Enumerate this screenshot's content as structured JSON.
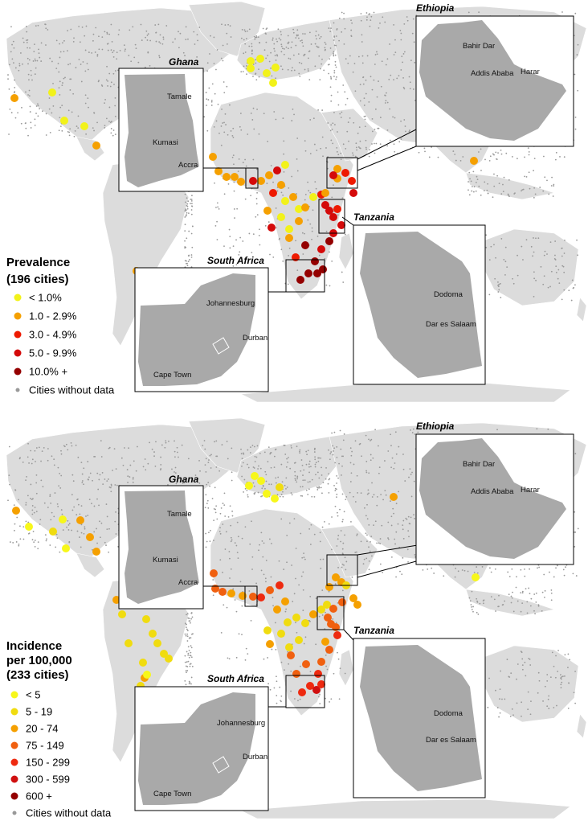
{
  "colors": {
    "land": "#dcdcdc",
    "ocean": "#ffffff",
    "inset_country": "#a9a9a9",
    "no_data_dot": "#999999",
    "inset_border": "#000000"
  },
  "panels": [
    {
      "id": "prevalence",
      "legend": {
        "title_lines": [
          "Prevalence",
          "(196 cities)"
        ],
        "items": [
          {
            "label": "< 1.0%",
            "color": "#f2f21a",
            "value_class": 0
          },
          {
            "label": "1.0 - 2.9%",
            "color": "#f5a000",
            "value_class": 1
          },
          {
            "label": "3.0 - 4.9%",
            "color": "#ee1a00",
            "value_class": 2
          },
          {
            "label": "5.0 - 9.9%",
            "color": "#d40a0a",
            "value_class": 3
          },
          {
            "label": "10.0% +",
            "color": "#940000",
            "value_class": 4
          },
          {
            "label": "Cities without data",
            "color": "#999999",
            "value_class": -1
          }
        ]
      },
      "insets": {
        "ghana": {
          "title": "Ghana",
          "cities": [
            "Tamale",
            "Kumasi",
            "Accra"
          ]
        },
        "ethiopia": {
          "title": "Ethiopia",
          "cities": [
            "Bahir Dar",
            "Addis Ababa",
            "Harar"
          ]
        },
        "tanzania": {
          "title": "Tanzania",
          "cities": [
            "Dodoma",
            "Dar es Salaam"
          ]
        },
        "south_africa": {
          "title": "South Africa",
          "cities": [
            "Johannesburg",
            "Durban",
            "Cape Town"
          ]
        }
      }
    },
    {
      "id": "incidence",
      "legend": {
        "title_lines": [
          "Incidence",
          "per 100,000",
          "(233 cities)"
        ],
        "items": [
          {
            "label": "< 5",
            "color": "#f7f71a",
            "value_class": 0
          },
          {
            "label": "5 - 19",
            "color": "#f0dc10",
            "value_class": 1
          },
          {
            "label": "20 - 74",
            "color": "#f5a000",
            "value_class": 2
          },
          {
            "label": "75 - 149",
            "color": "#f06010",
            "value_class": 3
          },
          {
            "label": "150 - 299",
            "color": "#ee2a10",
            "value_class": 4
          },
          {
            "label": "300 - 599",
            "color": "#d01010",
            "value_class": 5
          },
          {
            "label": "600 +",
            "color": "#940000",
            "value_class": 6
          },
          {
            "label": "Cities without data",
            "color": "#999999",
            "value_class": -1
          }
        ]
      },
      "insets": {
        "ghana": {
          "title": "Ghana",
          "cities": [
            "Tamale",
            "Kumasi",
            "Accra"
          ]
        },
        "ethiopia": {
          "title": "Ethiopia",
          "cities": [
            "Bahir Dar",
            "Addis Ababa",
            "Harar"
          ]
        },
        "tanzania": {
          "title": "Tanzania",
          "cities": [
            "Dodoma",
            "Dar es Salaam"
          ]
        },
        "south_africa": {
          "title": "South Africa",
          "cities": [
            "Johannesburg",
            "Durban",
            "Cape Town"
          ]
        }
      }
    }
  ]
}
